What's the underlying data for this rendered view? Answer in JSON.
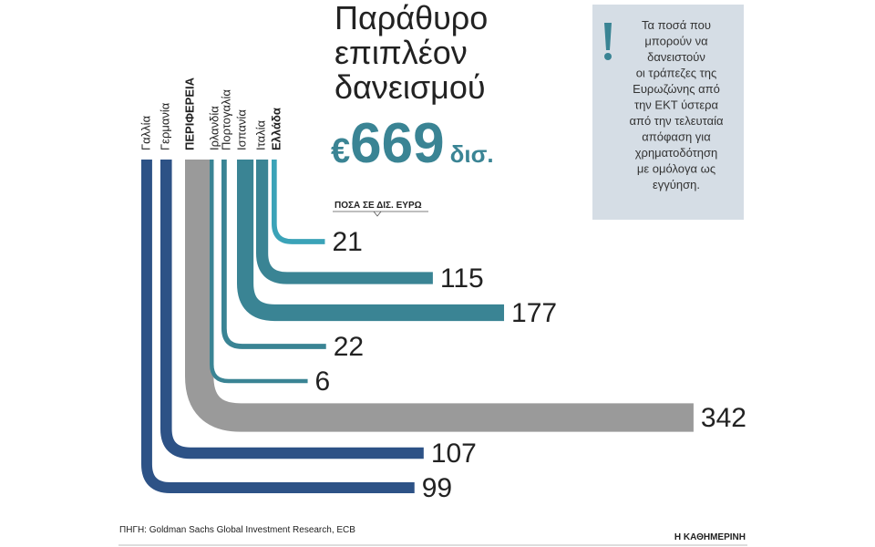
{
  "chart_data": {
    "type": "bent-bar",
    "title": [
      "Παράθυρο",
      "επιπλέον",
      "δανεισμού"
    ],
    "total": {
      "prefix": "€",
      "value": 669,
      "unit": "δισ."
    },
    "unit_label": "ΠΟΣΑ ΣΕ ΔΙΣ. ΕΥΡΩ",
    "categories": [
      "Γαλλία",
      "Γερμανία",
      "ΠΕΡΙΦΕΡΕΙΑ",
      "Ιρλανδία",
      "Πορτογαλία",
      "Ισπανία",
      "Ιταλία",
      "Ελλάδα"
    ],
    "values": [
      99,
      107,
      342,
      6,
      22,
      177,
      115,
      21
    ],
    "colors": [
      "#2d5286",
      "#2d5286",
      "#9a9a9a",
      "#3a8494",
      "#3a8494",
      "#3a8494",
      "#3a8494",
      "#3ba3b8"
    ],
    "note": [
      "Τα ποσά που",
      "μπορούν να",
      "δανειστούν",
      "οι τράπεζες της",
      "Ευρωζώνης από",
      "την ΕΚΤ ύστερα",
      "από την τελευταία",
      "απόφαση για",
      "χρηματοδότηση",
      "με ομόλογα ως",
      "εγγύηση."
    ],
    "source": "ΠΗΓΗ: Goldman Sachs Global Investment Research, ECB",
    "brand": "Η ΚΑΘΗΜΕΡΙΝΗ"
  }
}
